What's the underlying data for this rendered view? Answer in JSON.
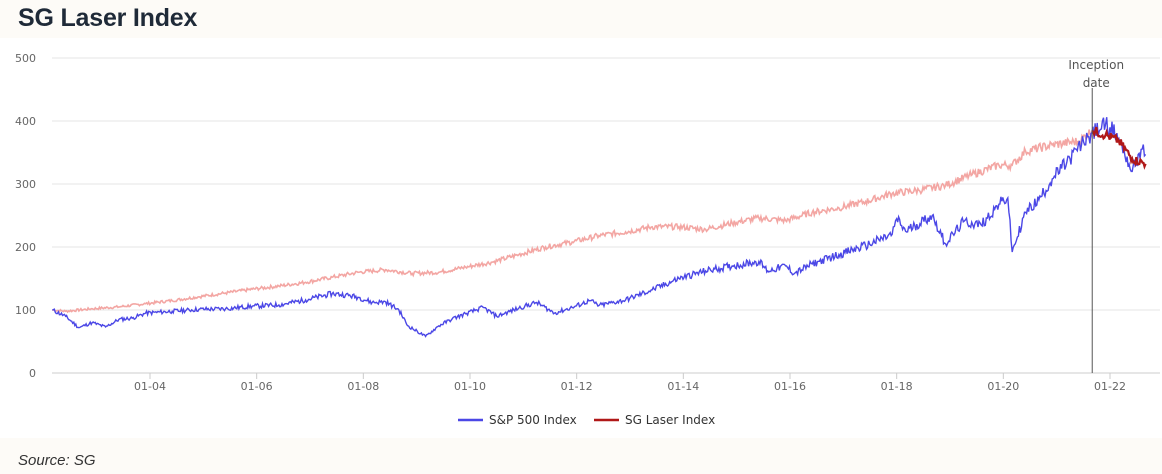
{
  "title": "SG Laser Index",
  "source": "Source: SG",
  "colors": {
    "sp500": "#4b47e6",
    "laser_live": "#b01818",
    "laser_backtest": "#f3a6a3",
    "grid": "#e6e6e6",
    "axis_text": "#666666"
  },
  "chart_data": {
    "type": "line",
    "ylim": [
      0,
      500
    ],
    "yticks": [
      0,
      100,
      200,
      300,
      400,
      500
    ],
    "xlim": [
      "2002-03",
      "2022-09"
    ],
    "xticks": [
      "01-04",
      "01-06",
      "01-08",
      "01-10",
      "01-12",
      "01-14",
      "01-16",
      "01-18",
      "01-20",
      "01-22"
    ],
    "xtick_dates": [
      "2004-01",
      "2006-01",
      "2008-01",
      "2010-01",
      "2012-01",
      "2014-01",
      "2016-01",
      "2018-01",
      "2020-01",
      "2022-01"
    ],
    "annotation": {
      "text_line1": "Inception",
      "text_line2": "date",
      "date": "2021-09"
    },
    "legend": {
      "placement": "bottom-center"
    },
    "series": [
      {
        "name": "S&P 500 Index",
        "points": [
          [
            "2002-03",
            100
          ],
          [
            "2002-06",
            90
          ],
          [
            "2002-09",
            72
          ],
          [
            "2002-12",
            80
          ],
          [
            "2003-03",
            73
          ],
          [
            "2003-06",
            85
          ],
          [
            "2003-09",
            87
          ],
          [
            "2003-12",
            95
          ],
          [
            "2004-06",
            98
          ],
          [
            "2004-12",
            101
          ],
          [
            "2005-06",
            102
          ],
          [
            "2005-12",
            106
          ],
          [
            "2006-06",
            108
          ],
          [
            "2006-12",
            116
          ],
          [
            "2007-06",
            126
          ],
          [
            "2007-09",
            124
          ],
          [
            "2007-12",
            120
          ],
          [
            "2008-03",
            112
          ],
          [
            "2008-06",
            113
          ],
          [
            "2008-09",
            100
          ],
          [
            "2008-11",
            75
          ],
          [
            "2009-03",
            58
          ],
          [
            "2009-06",
            75
          ],
          [
            "2009-09",
            86
          ],
          [
            "2009-12",
            94
          ],
          [
            "2010-04",
            104
          ],
          [
            "2010-07",
            90
          ],
          [
            "2010-12",
            103
          ],
          [
            "2011-04",
            112
          ],
          [
            "2011-08",
            95
          ],
          [
            "2011-12",
            104
          ],
          [
            "2012-04",
            115
          ],
          [
            "2012-06",
            107
          ],
          [
            "2012-12",
            116
          ],
          [
            "2013-06",
            132
          ],
          [
            "2013-12",
            150
          ],
          [
            "2014-06",
            162
          ],
          [
            "2014-12",
            170
          ],
          [
            "2015-06",
            177
          ],
          [
            "2015-08",
            162
          ],
          [
            "2015-12",
            170
          ],
          [
            "2016-02",
            158
          ],
          [
            "2016-06",
            173
          ],
          [
            "2016-12",
            188
          ],
          [
            "2017-06",
            202
          ],
          [
            "2017-12",
            220
          ],
          [
            "2018-01",
            245
          ],
          [
            "2018-03",
            225
          ],
          [
            "2018-09",
            250
          ],
          [
            "2018-12",
            205
          ],
          [
            "2019-04",
            240
          ],
          [
            "2019-08",
            235
          ],
          [
            "2019-12",
            268
          ],
          [
            "2020-02",
            278
          ],
          [
            "2020-03",
            192
          ],
          [
            "2020-06",
            255
          ],
          [
            "2020-09",
            275
          ],
          [
            "2020-12",
            308
          ],
          [
            "2021-04",
            340
          ],
          [
            "2021-08",
            375
          ],
          [
            "2021-12",
            395
          ],
          [
            "2022-01",
            390
          ],
          [
            "2022-03",
            372
          ],
          [
            "2022-06",
            320
          ],
          [
            "2022-08",
            355
          ],
          [
            "2022-09",
            347
          ]
        ]
      },
      {
        "name": "SG Laser Index",
        "points": [
          [
            "2002-03",
            100
          ],
          [
            "2002-06",
            98
          ],
          [
            "2002-12",
            102
          ],
          [
            "2003-06",
            105
          ],
          [
            "2003-12",
            110
          ],
          [
            "2004-06",
            115
          ],
          [
            "2004-12",
            121
          ],
          [
            "2005-06",
            127
          ],
          [
            "2005-12",
            133
          ],
          [
            "2006-06",
            138
          ],
          [
            "2006-12",
            144
          ],
          [
            "2007-06",
            152
          ],
          [
            "2007-12",
            160
          ],
          [
            "2008-06",
            164
          ],
          [
            "2008-12",
            158
          ],
          [
            "2009-06",
            160
          ],
          [
            "2009-12",
            168
          ],
          [
            "2010-06",
            176
          ],
          [
            "2010-12",
            188
          ],
          [
            "2011-06",
            200
          ],
          [
            "2011-12",
            208
          ],
          [
            "2012-06",
            218
          ],
          [
            "2012-12",
            224
          ],
          [
            "2013-06",
            232
          ],
          [
            "2013-12",
            232
          ],
          [
            "2014-06",
            228
          ],
          [
            "2014-12",
            238
          ],
          [
            "2015-06",
            246
          ],
          [
            "2015-12",
            242
          ],
          [
            "2016-06",
            255
          ],
          [
            "2016-12",
            262
          ],
          [
            "2017-06",
            272
          ],
          [
            "2017-12",
            285
          ],
          [
            "2018-06",
            290
          ],
          [
            "2018-12",
            298
          ],
          [
            "2019-06",
            315
          ],
          [
            "2019-12",
            330
          ],
          [
            "2020-03",
            330
          ],
          [
            "2020-06",
            352
          ],
          [
            "2020-12",
            362
          ],
          [
            "2021-06",
            368
          ],
          [
            "2021-09",
            385
          ],
          [
            "2021-12",
            378
          ],
          [
            "2022-03",
            368
          ],
          [
            "2022-06",
            340
          ],
          [
            "2022-09",
            332
          ]
        ],
        "live_from": "2021-09"
      }
    ]
  }
}
